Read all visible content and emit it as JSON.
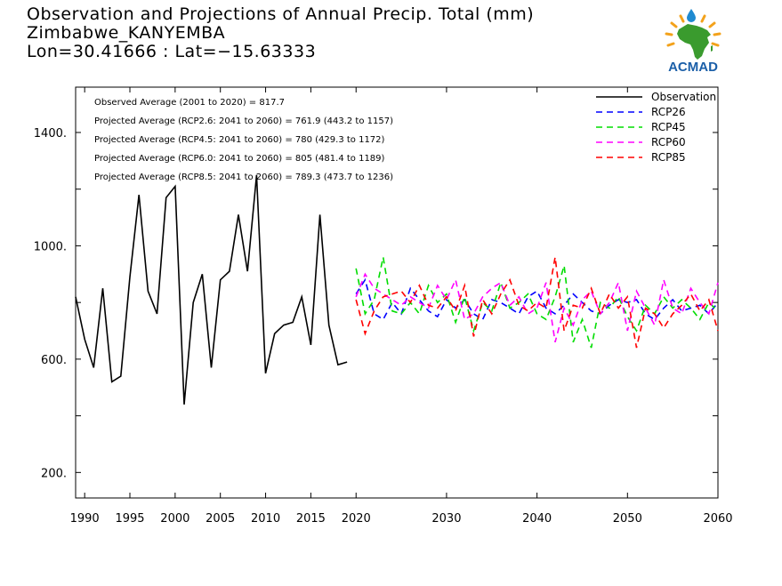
{
  "title": {
    "line1": "Observation and Projections of Annual Precip. Total (mm)",
    "line2": "Zimbabwe_KANYEMBA",
    "line3": "Lon=30.41666 : Lat=−15.63333"
  },
  "logo": {
    "text": "ACMAD"
  },
  "colors": {
    "Observation": "#000000",
    "RCP26": "#0000ff",
    "RCP45": "#00dd00",
    "RCP60": "#ff00ff",
    "RCP85": "#ff0000"
  },
  "chart_data": {
    "type": "line",
    "xlim": [
      1989,
      2060
    ],
    "ylim": [
      110,
      1560
    ],
    "xticks": [
      1990,
      1995,
      2000,
      2005,
      2010,
      2015,
      2020,
      2030,
      2040,
      2050,
      2060
    ],
    "yticks": [
      200,
      600,
      1000,
      1400
    ],
    "ytick_labels": [
      "200.",
      "600.",
      "1000.",
      "1400."
    ],
    "legend_position": "top-right",
    "annotations": [
      "Observed Average (2001 to 2020) = 817.7",
      "Projected Average (RCP2.6: 2041 to 2060) = 761.9 (443.2 to 1157)",
      "Projected Average (RCP4.5: 2041 to 2060) = 780 (429.3 to 1172)",
      "Projected Average (RCP6.0: 2041 to 2060) = 805 (481.4 to 1189)",
      "Projected Average (RCP8.5: 2041 to 2060) = 789.3 (473.7 to 1236)"
    ],
    "series": [
      {
        "name": "Observation",
        "style": "solid",
        "x": [
          1989,
          1990,
          1991,
          1992,
          1993,
          1994,
          1995,
          1996,
          1997,
          1998,
          1999,
          2000,
          2001,
          2002,
          2003,
          2004,
          2005,
          2006,
          2007,
          2008,
          2009,
          2010,
          2011,
          2012,
          2013,
          2014,
          2015,
          2016,
          2017,
          2018,
          2019
        ],
        "values": [
          820,
          670,
          570,
          850,
          520,
          540,
          890,
          1180,
          840,
          760,
          1170,
          1210,
          440,
          800,
          900,
          570,
          880,
          910,
          1110,
          910,
          1250,
          550,
          690,
          720,
          730,
          820,
          650,
          1110,
          720,
          580,
          590
        ]
      },
      {
        "name": "RCP26",
        "style": "dashed",
        "x0": 2020,
        "values": [
          830,
          880,
          760,
          740,
          800,
          760,
          850,
          810,
          770,
          750,
          810,
          780,
          810,
          760,
          740,
          810,
          800,
          780,
          760,
          820,
          840,
          780,
          760,
          790,
          830,
          800,
          770,
          760,
          790,
          810,
          800,
          810,
          760,
          740,
          780,
          810,
          770,
          780,
          790,
          760,
          800
        ]
      },
      {
        "name": "RCP45",
        "style": "dashed",
        "x0": 2020,
        "values": [
          920,
          760,
          810,
          960,
          770,
          760,
          800,
          760,
          860,
          800,
          830,
          730,
          820,
          700,
          800,
          770,
          870,
          780,
          800,
          830,
          760,
          740,
          820,
          930,
          660,
          740,
          640,
          800,
          780,
          820,
          750,
          700,
          790,
          760,
          820,
          780,
          810,
          780,
          740,
          800,
          770
        ]
      },
      {
        "name": "RCP60",
        "style": "dashed",
        "x0": 2020,
        "values": [
          820,
          900,
          850,
          830,
          810,
          790,
          820,
          800,
          780,
          860,
          810,
          880,
          740,
          760,
          820,
          850,
          870,
          790,
          820,
          760,
          780,
          870,
          660,
          780,
          720,
          810,
          840,
          760,
          800,
          870,
          700,
          840,
          780,
          720,
          880,
          780,
          760,
          850,
          800,
          760,
          870
        ]
      },
      {
        "name": "RCP85",
        "style": "dashed",
        "x0": 2020,
        "values": [
          810,
          690,
          770,
          820,
          830,
          840,
          800,
          860,
          790,
          780,
          820,
          770,
          860,
          680,
          810,
          760,
          830,
          880,
          790,
          770,
          800,
          780,
          960,
          700,
          790,
          780,
          850,
          760,
          830,
          780,
          820,
          640,
          780,
          760,
          710,
          760,
          790,
          830,
          770,
          810,
          700
        ]
      }
    ]
  }
}
